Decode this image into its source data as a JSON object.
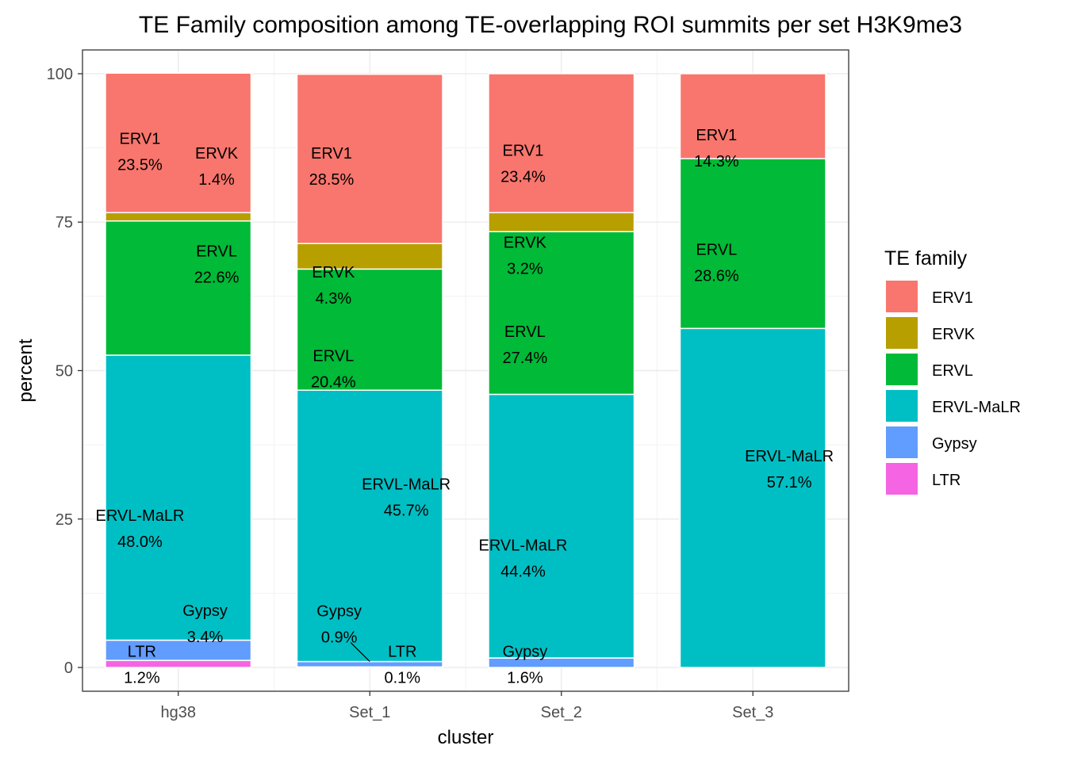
{
  "chart_data": {
    "type": "bar",
    "stacked": true,
    "title": "TE Family composition among TE-overlapping ROI summits per set H3K9me3",
    "xlabel": "cluster",
    "ylabel": "percent",
    "ylim": [
      -4,
      104
    ],
    "yticks": [
      0,
      25,
      50,
      75,
      100
    ],
    "grid": true,
    "legend": {
      "title": "TE family",
      "placement": "right"
    },
    "categories": [
      "hg38",
      "Set_1",
      "Set_2",
      "Set_3"
    ],
    "series": [
      {
        "name": "LTR",
        "color": "#F564E3",
        "values": [
          1.2,
          0.1,
          0,
          0
        ]
      },
      {
        "name": "Gypsy",
        "color": "#619CFF",
        "values": [
          3.4,
          0.9,
          1.6,
          0
        ]
      },
      {
        "name": "ERVL-MaLR",
        "color": "#00BFC4",
        "values": [
          48.0,
          45.7,
          44.4,
          57.1
        ]
      },
      {
        "name": "ERVL",
        "color": "#00BA38",
        "values": [
          22.6,
          20.4,
          27.4,
          28.6
        ]
      },
      {
        "name": "ERVK",
        "color": "#B79F00",
        "values": [
          1.4,
          4.3,
          3.2,
          0
        ]
      },
      {
        "name": "ERV1",
        "color": "#F8766D",
        "values": [
          23.5,
          28.5,
          23.4,
          14.3
        ]
      }
    ],
    "legend_order": [
      "ERV1",
      "ERVK",
      "ERVL",
      "ERVL-MaLR",
      "Gypsy",
      "LTR"
    ],
    "data_labels": [
      {
        "category": "hg38",
        "family": "ERV1",
        "pct": "23.5%",
        "x": -0.2,
        "y": 87
      },
      {
        "category": "hg38",
        "family": "ERVK",
        "pct": "1.4%",
        "x": 0.2,
        "y": 84.5
      },
      {
        "category": "hg38",
        "family": "ERVL",
        "pct": "22.6%",
        "x": 0.2,
        "y": 68
      },
      {
        "category": "hg38",
        "family": "ERVL-MaLR",
        "pct": "48.0%",
        "x": -0.2,
        "y": 23.5
      },
      {
        "category": "hg38",
        "family": "Gypsy",
        "pct": "3.4%",
        "x": 0.14,
        "y": 7.5
      },
      {
        "category": "hg38",
        "family": "LTR",
        "pct": "1.2%",
        "x": -0.19,
        "y": 0.6
      },
      {
        "category": "Set_1",
        "family": "ERV1",
        "pct": "28.5%",
        "x": -0.2,
        "y": 84.5
      },
      {
        "category": "Set_1",
        "family": "ERVK",
        "pct": "4.3%",
        "x": -0.19,
        "y": 64.5
      },
      {
        "category": "Set_1",
        "family": "ERVL",
        "pct": "20.4%",
        "x": -0.19,
        "y": 50.4
      },
      {
        "category": "Set_1",
        "family": "ERVL-MaLR",
        "pct": "45.7%",
        "x": 0.19,
        "y": 28.8
      },
      {
        "category": "Set_1",
        "family": "Gypsy",
        "pct": "0.9%",
        "x": -0.16,
        "y": 7.4
      },
      {
        "category": "Set_1",
        "family": "LTR",
        "pct": "0.1%",
        "x": 0.17,
        "y": 0.6
      },
      {
        "category": "Set_2",
        "family": "ERV1",
        "pct": "23.4%",
        "x": -0.2,
        "y": 85
      },
      {
        "category": "Set_2",
        "family": "ERVK",
        "pct": "3.2%",
        "x": -0.19,
        "y": 69.5
      },
      {
        "category": "Set_2",
        "family": "ERVL",
        "pct": "27.4%",
        "x": -0.19,
        "y": 54.5
      },
      {
        "category": "Set_2",
        "family": "ERVL-MaLR",
        "pct": "44.4%",
        "x": -0.2,
        "y": 18.5
      },
      {
        "category": "Set_2",
        "family": "Gypsy",
        "pct": "1.6%",
        "x": -0.19,
        "y": 0.6
      },
      {
        "category": "Set_3",
        "family": "ERV1",
        "pct": "14.3%",
        "x": -0.19,
        "y": 87.6
      },
      {
        "category": "Set_3",
        "family": "ERVL",
        "pct": "28.6%",
        "x": -0.19,
        "y": 68.3
      },
      {
        "category": "Set_3",
        "family": "ERVL-MaLR",
        "pct": "57.1%",
        "x": 0.19,
        "y": 33.5
      }
    ],
    "leader_lines": [
      {
        "category": "Set_1",
        "x1": -0.1,
        "y1": 4.2,
        "x2": 0,
        "y2": 1.0
      }
    ]
  }
}
